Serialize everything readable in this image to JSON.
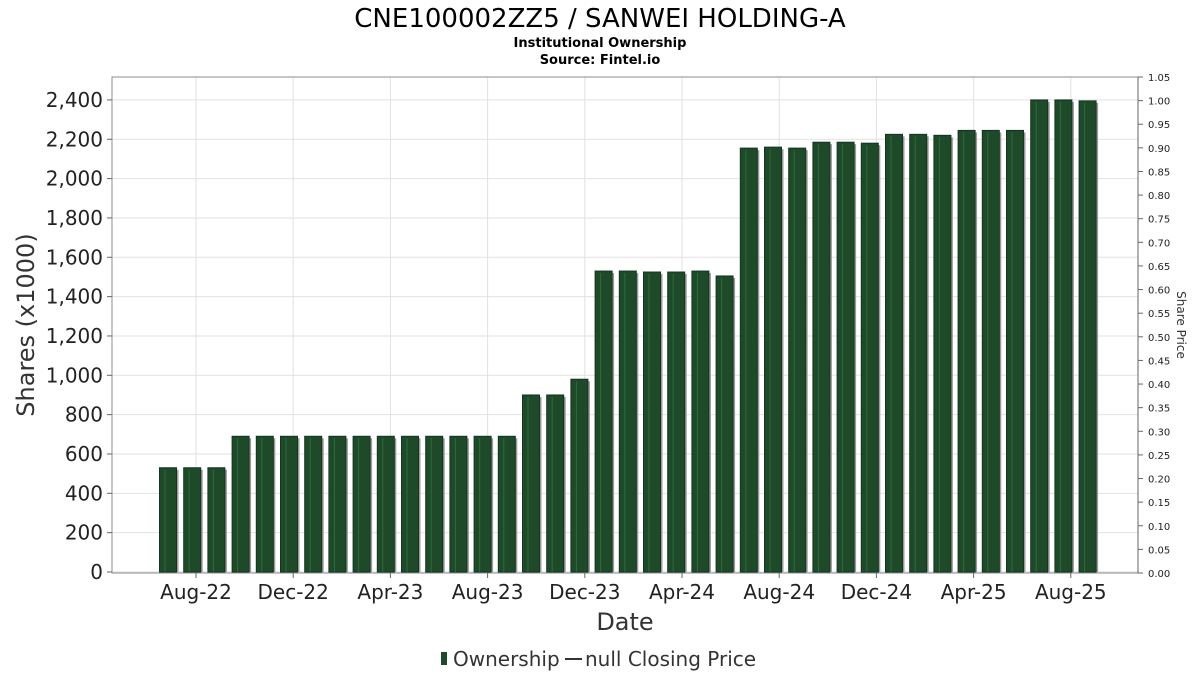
{
  "chart_data": {
    "type": "bar",
    "title": "CNE100002ZZ5 / SANWEI HOLDING-A",
    "subtitle_1": "Institutional Ownership",
    "subtitle_2": "Source: Fintel.io",
    "xlabel": "Date",
    "ylabel": "Shares (x1000)",
    "y2label": "Share Price",
    "ylim": [
      0,
      2500
    ],
    "y2lim": [
      0,
      1.05
    ],
    "y_ticks": [
      0,
      200,
      400,
      600,
      800,
      1000,
      1200,
      1400,
      1600,
      1800,
      2000,
      2200,
      2400
    ],
    "y_tick_labels": [
      "0",
      "200",
      "400",
      "600",
      "800",
      "1,000",
      "1,200",
      "1,400",
      "1,600",
      "1,800",
      "2,000",
      "2,200",
      "2,400"
    ],
    "y2_tick_labels": [
      "0.00",
      "0.05",
      "0.10",
      "0.15",
      "0.20",
      "0.25",
      "0.30",
      "0.35",
      "0.40",
      "0.45",
      "0.50",
      "0.55",
      "0.60",
      "0.65",
      "0.70",
      "0.75",
      "0.80",
      "0.85",
      "0.90",
      "0.95",
      "1.00",
      "1.05"
    ],
    "x_tick_labels": [
      "Aug-22",
      "Dec-22",
      "Apr-23",
      "Aug-23",
      "Dec-23",
      "Apr-24",
      "Aug-24",
      "Dec-24",
      "Apr-25",
      "Aug-25"
    ],
    "grid": true,
    "legend_position": "bottom",
    "series": [
      {
        "name": "Ownership",
        "color": "#1e4a2a",
        "values": [
          530,
          530,
          530,
          690,
          690,
          690,
          690,
          690,
          690,
          690,
          690,
          690,
          690,
          690,
          690,
          900,
          900,
          980,
          1530,
          1530,
          1525,
          1525,
          1530,
          1505,
          2155,
          2160,
          2155,
          2185,
          2185,
          2180,
          2225,
          2225,
          2220,
          2245,
          2245,
          2245,
          2400,
          2400,
          2395
        ]
      },
      {
        "name": "null Closing Price",
        "color": "#333333",
        "values": []
      }
    ]
  }
}
